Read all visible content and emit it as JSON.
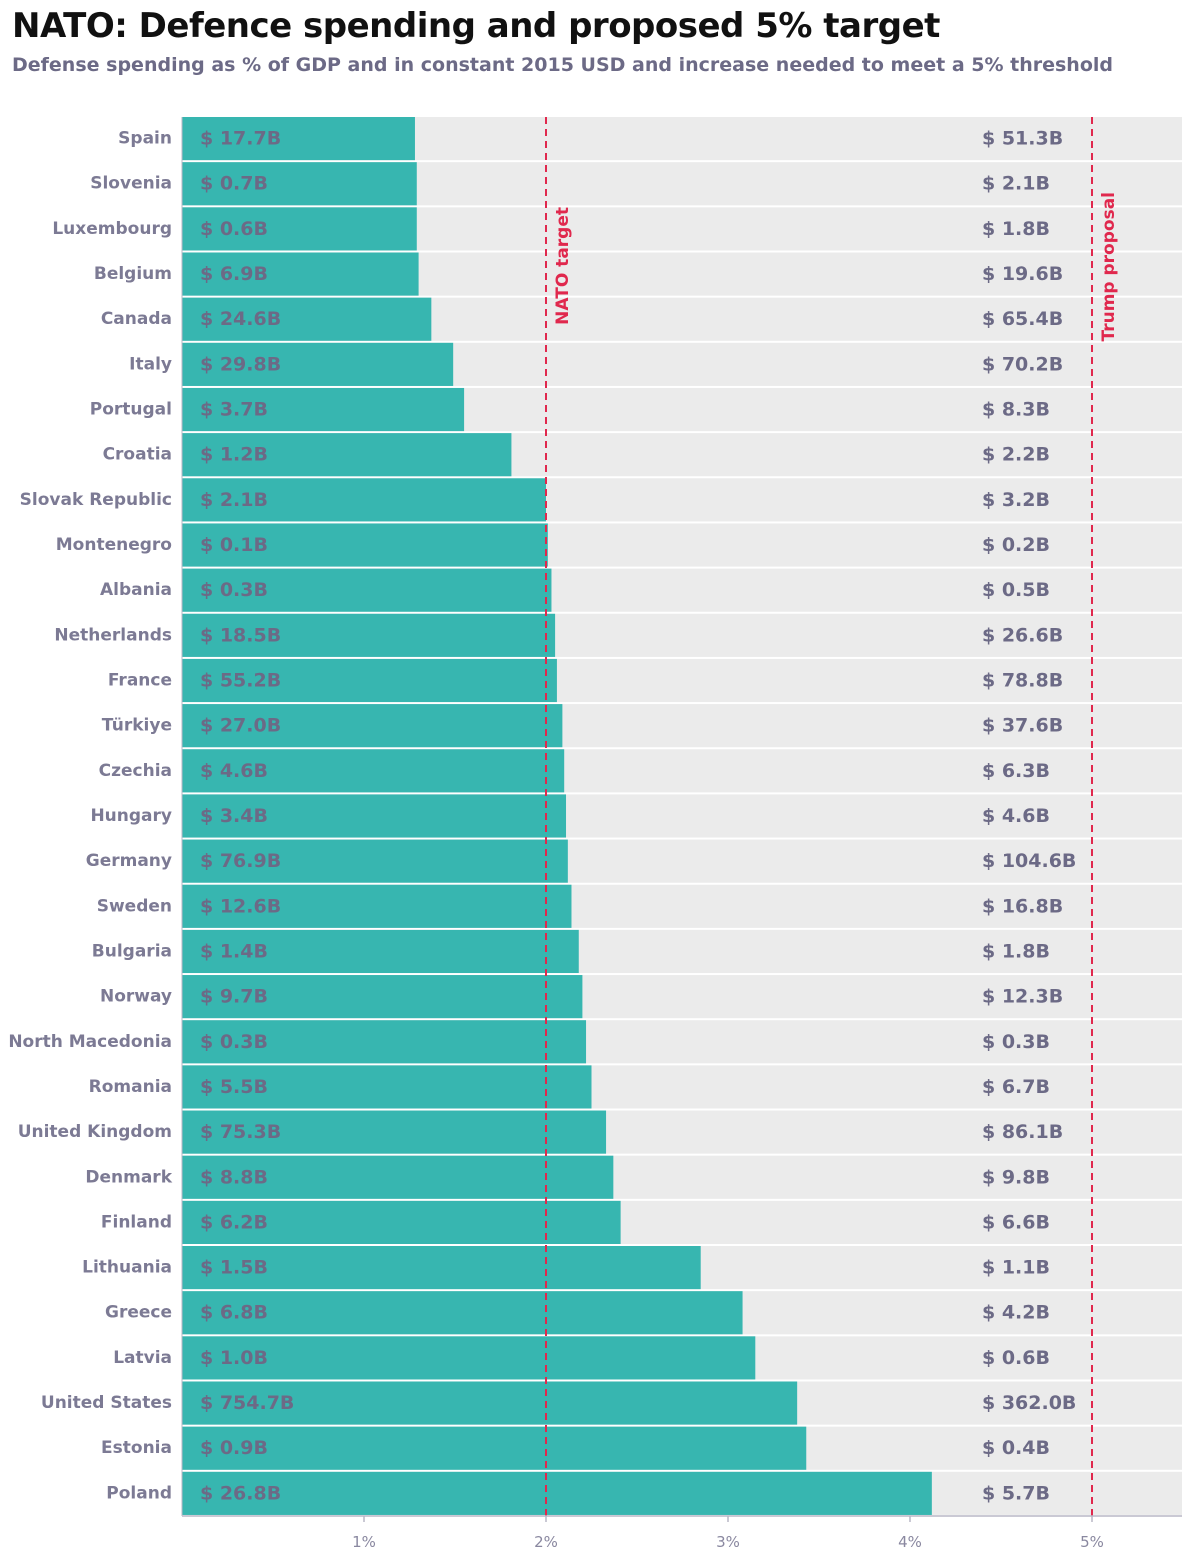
{
  "title": "NATO: Defence spending and proposed 5% target",
  "subtitle": "Defense spending as % of GDP and in constant 2015 USD and increase needed to meet a 5% threshold",
  "colors": {
    "bar": "#37b6b0",
    "background_track": "#ebebeb",
    "reference_line": "#e0284d",
    "axis_text": "#8a88a0",
    "label_text": "#6c6a86"
  },
  "chart_data": {
    "type": "bar",
    "orientation": "horizontal",
    "title": "NATO: Defence spending and proposed 5% target",
    "subtitle": "Defense spending as % of GDP and in constant 2015 USD and increase needed to meet a 5% threshold",
    "xlim": [
      0,
      5
    ],
    "x_ticks": [
      1,
      2,
      3,
      4,
      5
    ],
    "x_tick_labels": [
      "1%",
      "2%",
      "3%",
      "4%",
      "5%"
    ],
    "grid": false,
    "reference_lines": [
      {
        "value": 2,
        "label": "NATO target"
      },
      {
        "value": 5,
        "label": "Trump proposal"
      }
    ],
    "categories": [
      "Spain",
      "Slovenia",
      "Luxembourg",
      "Belgium",
      "Canada",
      "Italy",
      "Portugal",
      "Croatia",
      "Slovak Republic",
      "Montenegro",
      "Albania",
      "Netherlands",
      "France",
      "Türkiye",
      "Czechia",
      "Hungary",
      "Germany",
      "Sweden",
      "Bulgaria",
      "Norway",
      "North Macedonia",
      "Romania",
      "United Kingdom",
      "Denmark",
      "Finland",
      "Lithuania",
      "Greece",
      "Latvia",
      "United States",
      "Estonia",
      "Poland"
    ],
    "series": [
      {
        "values": [
          1.28,
          1.29,
          1.29,
          1.3,
          1.37,
          1.49,
          1.55,
          1.81,
          2.0,
          2.01,
          2.03,
          2.05,
          2.06,
          2.09,
          2.1,
          2.11,
          2.12,
          2.14,
          2.18,
          2.2,
          2.22,
          2.25,
          2.33,
          2.37,
          2.41,
          2.85,
          3.08,
          3.15,
          3.38,
          3.43,
          4.12
        ]
      }
    ],
    "spending_labels": [
      "$ 17.7B",
      "$ 0.7B",
      "$ 0.6B",
      "$ 6.9B",
      "$ 24.6B",
      "$ 29.8B",
      "$ 3.7B",
      "$ 1.2B",
      "$ 2.1B",
      "$ 0.1B",
      "$ 0.3B",
      "$ 18.5B",
      "$ 55.2B",
      "$ 27.0B",
      "$ 4.6B",
      "$ 3.4B",
      "$ 76.9B",
      "$ 12.6B",
      "$ 1.4B",
      "$ 9.7B",
      "$ 0.3B",
      "$ 5.5B",
      "$ 75.3B",
      "$ 8.8B",
      "$ 6.2B",
      "$ 1.5B",
      "$ 6.8B",
      "$ 1.0B",
      "$ 754.7B",
      "$ 0.9B",
      "$ 26.8B"
    ],
    "increase_labels": [
      "$ 51.3B",
      "$ 2.1B",
      "$ 1.8B",
      "$ 19.6B",
      "$ 65.4B",
      "$ 70.2B",
      "$ 8.3B",
      "$ 2.2B",
      "$ 3.2B",
      "$ 0.2B",
      "$ 0.5B",
      "$ 26.6B",
      "$ 78.8B",
      "$ 37.6B",
      "$ 6.3B",
      "$ 4.6B",
      "$ 104.6B",
      "$ 16.8B",
      "$ 1.8B",
      "$ 12.3B",
      "$ 0.3B",
      "$ 6.7B",
      "$ 86.1B",
      "$ 9.8B",
      "$ 6.6B",
      "$ 1.1B",
      "$ 4.2B",
      "$ 0.6B",
      "$ 362.0B",
      "$ 0.4B",
      "$ 5.7B"
    ]
  }
}
